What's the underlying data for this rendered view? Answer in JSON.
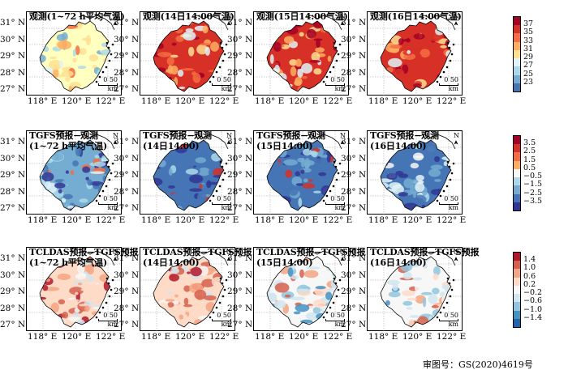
{
  "rows": [
    {
      "panels": [
        {
          "title": [
            "观测(1~72 h平均气温)"
          ],
          "scheme": "temp"
        },
        {
          "title": [
            "观测(14日14:00气温)"
          ],
          "scheme": "temp_hot"
        },
        {
          "title": [
            "观测(15日14:00气温)"
          ],
          "scheme": "temp_hot"
        },
        {
          "title": [
            "观测(16日14:00气温)"
          ],
          "scheme": "temp_hot"
        }
      ],
      "colorbar": {
        "ticks": [
          "37",
          "35",
          "33",
          "31",
          "29",
          "27",
          "25",
          "23"
        ],
        "colors": [
          "#a50026",
          "#d73027",
          "#f46d43",
          "#fdae61",
          "#fee090",
          "#e0f3f8",
          "#abd9e9",
          "#74add1",
          "#4575b4"
        ]
      }
    },
    {
      "panels": [
        {
          "title": [
            "TGFS预报−观测",
            "(1~72 h平均气温)"
          ],
          "scheme": "bias1"
        },
        {
          "title": [
            "TGFS预报−观测",
            "(14日14:00)"
          ],
          "scheme": "bias2"
        },
        {
          "title": [
            "TGFS预报−观测",
            "(15日14:00)"
          ],
          "scheme": "bias2"
        },
        {
          "title": [
            "TGFS预报−观测",
            "(16日14:00)"
          ],
          "scheme": "bias3"
        }
      ],
      "colorbar": {
        "ticks": [
          "3.5",
          "2.5",
          "1.5",
          "0.5",
          "−0.5",
          "−1.5",
          "−2.5",
          "−3.5"
        ],
        "colors": [
          "#a50026",
          "#d73027",
          "#f46d43",
          "#fdae61",
          "#f7f7f7",
          "#abd9e9",
          "#74add1",
          "#4575b4",
          "#313695"
        ]
      }
    },
    {
      "panels": [
        {
          "title": [
            "TCLDAS预报−TGFS预报",
            "(1~72 h平均气温)"
          ],
          "scheme": "diff1"
        },
        {
          "title": [
            "TCLDAS预报−TGFS预报",
            "(14日14:00)"
          ],
          "scheme": "diff1"
        },
        {
          "title": [
            "TCLDAS预报−TGFS预报",
            "(15日14:00)"
          ],
          "scheme": "diff2"
        },
        {
          "title": [
            "TCLDAS预报−TGFS预报",
            "(16日14:00)"
          ],
          "scheme": "diff2"
        }
      ],
      "colorbar": {
        "ticks": [
          "1.4",
          "1.0",
          "0.6",
          "0.2",
          "−0.2",
          "−0.6",
          "−1.0",
          "−1.4"
        ],
        "colors": [
          "#b2182b",
          "#d6604d",
          "#f4a582",
          "#fddbc7",
          "#f7f7f7",
          "#d1e5f0",
          "#92c5de",
          "#4393c3",
          "#2166ac"
        ]
      }
    }
  ],
  "axes": {
    "y_labels": [
      "31° N",
      "30° N",
      "29° N",
      "28° N",
      "27° N"
    ],
    "x_labels": [
      "118° E",
      "120° E",
      "122° E"
    ]
  },
  "map_marks": {
    "north": "N",
    "scale_value": "0 50",
    "scale_unit": "km"
  },
  "footer": "审图号：GS(2020)4619号"
}
